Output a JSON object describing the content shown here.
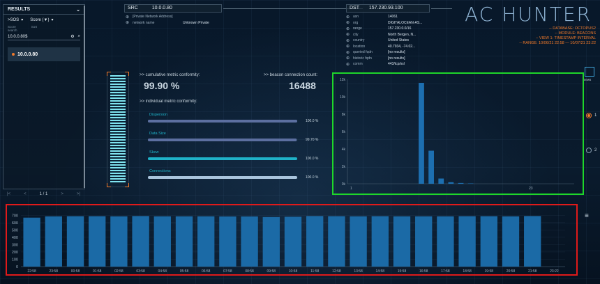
{
  "results": {
    "title": "RESULTS",
    "sort_by_label": ">SOS",
    "sort_label": "Score (▼)",
    "score_label": "Score",
    "search_label": "search",
    "sort_sub": "Sort",
    "search_value": "10.0.0.80$",
    "ip_item": "10.0.0.80",
    "pager": {
      "first": "|<",
      "prev": "<",
      "page": "1 / 1",
      "next": ">",
      "last": ">|"
    }
  },
  "src": {
    "tag": "SRC",
    "ip": "10.0.0.80",
    "rows": [
      {
        "k": "[Private Network Address]",
        "v": ""
      },
      {
        "k": "network name",
        "v": "Unknown Private"
      }
    ]
  },
  "dst": {
    "tag": "DST",
    "ip": "157.230.93.100",
    "rows": [
      {
        "k": "asn",
        "v": "14061"
      },
      {
        "k": "org",
        "v": "DIGITALOCEAN-AS..."
      },
      {
        "k": "range",
        "v": "157.230.0.0/16"
      },
      {
        "k": "city",
        "v": "North Bergen, N..."
      },
      {
        "k": "country",
        "v": "United States"
      },
      {
        "k": "location",
        "v": "40.7934, -74.02..."
      },
      {
        "k": "queried fqdn",
        "v": "[no results]"
      },
      {
        "k": "historic fqdn",
        "v": "[no results]"
      },
      {
        "k": "comm",
        "v": "443/tcp/ssl"
      }
    ]
  },
  "brand": {
    "logo": "AC HUNTER",
    "lines": [
      "-- DATABASE: OCTOPUS2",
      "-- MODULE: BEACONS",
      "-- VIEW 1: TIMESTAMP INTERVAL",
      "-- RANGE: 10/06/21 22:58 — 10/07/21 23:22"
    ]
  },
  "conformity": {
    "cum_label": ">> cumulative metric conformity:",
    "cum_value": "99.90 %",
    "count_label": ">> beacon connection count:",
    "count_value": "16488",
    "ind_label": ">> individual metric conformity:",
    "metrics": [
      {
        "name": "Dispersion",
        "pct": "100.0 %",
        "frac": 1.0
      },
      {
        "name": "Data Size",
        "pct": "99.70 %",
        "frac": 0.997
      },
      {
        "name": "Skew",
        "pct": "100.0 %",
        "frac": 1.0
      },
      {
        "name": "Connections",
        "pct": "100.0 %",
        "frac": 1.0
      }
    ]
  },
  "side_controls": {
    "view1": "1",
    "view2": "2",
    "label": "views"
  },
  "chart_data": [
    {
      "type": "bar",
      "title": "",
      "x": [
        1,
        2,
        3,
        4,
        5,
        6,
        7,
        8,
        9,
        10,
        11,
        12,
        13,
        14,
        15,
        16,
        17,
        18,
        19,
        20,
        21,
        22,
        23
      ],
      "values": [
        0,
        0,
        0,
        0,
        0,
        0,
        0,
        11600,
        3800,
        600,
        180,
        90,
        40,
        20,
        10,
        5,
        5,
        5,
        5,
        5,
        5,
        5,
        5
      ],
      "yticks": [
        "0k",
        "2k",
        "4k",
        "6k",
        "8k",
        "10k",
        "12k"
      ],
      "xtick_labels": [
        "1",
        "23"
      ],
      "ylim": [
        0,
        12000
      ]
    },
    {
      "type": "bar",
      "title": "",
      "categories": [
        "22:58",
        "23:58",
        "00:58",
        "01:58",
        "02:58",
        "03:58",
        "04:58",
        "05:58",
        "06:58",
        "07:58",
        "08:58",
        "09:58",
        "10:58",
        "11:58",
        "12:58",
        "13:58",
        "14:58",
        "15:58",
        "16:58",
        "17:58",
        "18:58",
        "19:58",
        "20:58",
        "21:58",
        "23:22"
      ],
      "values": [
        668,
        686,
        688,
        688,
        686,
        690,
        686,
        686,
        686,
        684,
        684,
        676,
        680,
        690,
        688,
        686,
        688,
        686,
        686,
        686,
        688,
        688,
        686,
        690,
        0
      ],
      "yticks": [
        0,
        100,
        200,
        300,
        400,
        500,
        600,
        700
      ],
      "ylim": [
        0,
        760
      ]
    }
  ]
}
